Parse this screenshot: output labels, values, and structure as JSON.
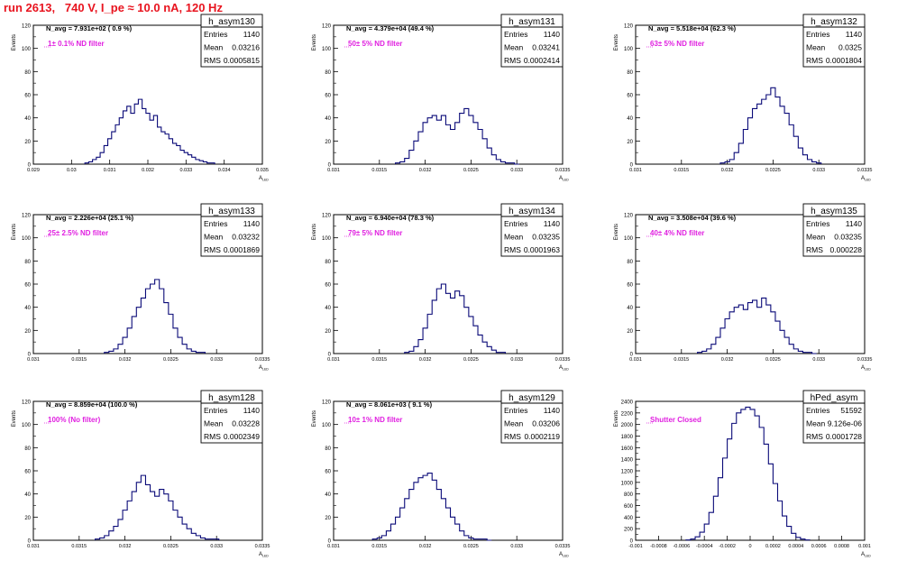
{
  "canvas_title": "run 2613,   740 V, I_pe ≈ 10.0 nA, 120 Hz",
  "colors": {
    "title": "#e8141f",
    "annotation": "#e020e0",
    "hist": "#0a0a78",
    "frame": "#000000"
  },
  "stat_labels": {
    "entries": "Entries",
    "mean": "Mean",
    "rms": "RMS"
  },
  "axis_labels": {
    "y": "Events",
    "x_main": "A",
    "x_sub": "LED"
  },
  "chart_data": [
    {
      "type": "bar",
      "histogram": "h_asym130",
      "navg_text": "N_avg = 7.931e+02 ( 0.9 %)",
      "filter_text": "1± 0.1% ND filter",
      "entries": "1140",
      "mean": "0.03216",
      "rms": "0.0005815",
      "xlim": [
        0.029,
        0.035
      ],
      "ylim": [
        0,
        120
      ],
      "xticks": [
        "0.029",
        "0.03",
        "0.031",
        "0.032",
        "0.033",
        "0.034",
        "0.035"
      ],
      "yticks": [
        "0",
        "20",
        "40",
        "60",
        "80",
        "100",
        "120"
      ],
      "x": [
        0.0304,
        0.0305,
        0.0306,
        0.0307,
        0.0308,
        0.0309,
        0.031,
        0.0311,
        0.0312,
        0.0313,
        0.0314,
        0.0315,
        0.0316,
        0.0317,
        0.0318,
        0.0319,
        0.032,
        0.0321,
        0.0322,
        0.0323,
        0.0324,
        0.0325,
        0.0326,
        0.0327,
        0.0328,
        0.0329,
        0.033,
        0.0331,
        0.0332,
        0.0333,
        0.0334,
        0.0335,
        0.0336,
        0.0337
      ],
      "values": [
        1,
        2,
        4,
        6,
        10,
        16,
        22,
        28,
        34,
        40,
        46,
        50,
        44,
        52,
        56,
        48,
        44,
        38,
        42,
        32,
        28,
        26,
        22,
        18,
        16,
        12,
        10,
        8,
        6,
        4,
        3,
        2,
        1,
        1
      ]
    },
    {
      "type": "bar",
      "histogram": "h_asym131",
      "navg_text": "N_avg = 4.379e+04 (49.4 %)",
      "filter_text": "50± 5% ND filter",
      "entries": "1140",
      "mean": "0.03241",
      "rms": "0.0002414",
      "xlim": [
        0.031,
        0.0335
      ],
      "ylim": [
        0,
        120
      ],
      "xticks": [
        "0.031",
        "0.0315",
        "0.032",
        "0.0325",
        "0.033",
        "0.0335"
      ],
      "yticks": [
        "0",
        "20",
        "40",
        "60",
        "80",
        "100",
        "120"
      ],
      "x": [
        0.0317,
        0.03175,
        0.0318,
        0.03185,
        0.0319,
        0.03195,
        0.032,
        0.03205,
        0.0321,
        0.03215,
        0.0322,
        0.03225,
        0.0323,
        0.03235,
        0.0324,
        0.03245,
        0.0325,
        0.03255,
        0.0326,
        0.03265,
        0.0327,
        0.03275,
        0.0328,
        0.03285,
        0.0329,
        0.03295,
        0.033
      ],
      "values": [
        1,
        2,
        5,
        12,
        20,
        28,
        36,
        40,
        42,
        38,
        42,
        34,
        30,
        36,
        44,
        48,
        42,
        36,
        30,
        22,
        14,
        8,
        4,
        2,
        1,
        1,
        0
      ]
    },
    {
      "type": "bar",
      "histogram": "h_asym132",
      "navg_text": "N_avg = 5.518e+04 (62.3 %)",
      "filter_text": "63± 5% ND filter",
      "entries": "1140",
      "mean": "0.0325",
      "rms": "0.0001804",
      "xlim": [
        0.031,
        0.0335
      ],
      "ylim": [
        0,
        120
      ],
      "xticks": [
        "0.031",
        "0.0315",
        "0.032",
        "0.0325",
        "0.033",
        "0.0335"
      ],
      "yticks": [
        "0",
        "20",
        "40",
        "60",
        "80",
        "100",
        "120"
      ],
      "x": [
        0.03195,
        0.032,
        0.03205,
        0.0321,
        0.03215,
        0.0322,
        0.03225,
        0.0323,
        0.03235,
        0.0324,
        0.03245,
        0.0325,
        0.03255,
        0.0326,
        0.03265,
        0.0327,
        0.03275,
        0.0328,
        0.03285,
        0.0329,
        0.03295,
        0.033
      ],
      "values": [
        1,
        2,
        4,
        10,
        18,
        30,
        40,
        48,
        52,
        56,
        60,
        66,
        58,
        50,
        44,
        34,
        24,
        14,
        8,
        4,
        2,
        1
      ]
    },
    {
      "type": "bar",
      "histogram": "h_asym133",
      "navg_text": "N_avg = 2.226e+04 (25.1 %)",
      "filter_text": "25± 2.5% ND filter",
      "entries": "1140",
      "mean": "0.03232",
      "rms": "0.0001869",
      "xlim": [
        0.031,
        0.0335
      ],
      "ylim": [
        0,
        120
      ],
      "xticks": [
        "0.031",
        "0.0315",
        "0.032",
        "0.0325",
        "0.033",
        "0.0335"
      ],
      "yticks": [
        "0",
        "20",
        "40",
        "60",
        "80",
        "100",
        "120"
      ],
      "x": [
        0.0318,
        0.03185,
        0.0319,
        0.03195,
        0.032,
        0.03205,
        0.0321,
        0.03215,
        0.0322,
        0.03225,
        0.0323,
        0.03235,
        0.0324,
        0.03245,
        0.0325,
        0.03255,
        0.0326,
        0.03265,
        0.0327,
        0.03275,
        0.0328,
        0.03285
      ],
      "values": [
        1,
        2,
        4,
        8,
        14,
        22,
        32,
        40,
        48,
        56,
        60,
        64,
        56,
        44,
        34,
        22,
        14,
        8,
        4,
        2,
        1,
        1
      ]
    },
    {
      "type": "bar",
      "histogram": "h_asym134",
      "navg_text": "N_avg = 6.940e+04 (78.3 %)",
      "filter_text": "79± 5% ND filter",
      "entries": "1140",
      "mean": "0.03235",
      "rms": "0.0001963",
      "xlim": [
        0.031,
        0.0335
      ],
      "ylim": [
        0,
        120
      ],
      "xticks": [
        "0.031",
        "0.0315",
        "0.032",
        "0.0325",
        "0.033",
        "0.0335"
      ],
      "yticks": [
        "0",
        "20",
        "40",
        "60",
        "80",
        "100",
        "120"
      ],
      "x": [
        0.0318,
        0.03185,
        0.0319,
        0.03195,
        0.032,
        0.03205,
        0.0321,
        0.03215,
        0.0322,
        0.03225,
        0.0323,
        0.03235,
        0.0324,
        0.03245,
        0.0325,
        0.03255,
        0.0326,
        0.03265,
        0.0327,
        0.03275,
        0.0328,
        0.03285
      ],
      "values": [
        1,
        2,
        6,
        12,
        22,
        34,
        46,
        56,
        60,
        52,
        48,
        54,
        50,
        40,
        32,
        24,
        16,
        10,
        6,
        3,
        1,
        1
      ]
    },
    {
      "type": "bar",
      "histogram": "h_asym135",
      "navg_text": "N_avg = 3.508e+04 (39.6 %)",
      "filter_text": "40± 4% ND filter",
      "entries": "1140",
      "mean": "0.03235",
      "rms": "0.000228",
      "xlim": [
        0.031,
        0.0335
      ],
      "ylim": [
        0,
        120
      ],
      "xticks": [
        "0.031",
        "0.0315",
        "0.032",
        "0.0325",
        "0.033",
        "0.0335"
      ],
      "yticks": [
        "0",
        "20",
        "40",
        "60",
        "80",
        "100",
        "120"
      ],
      "x": [
        0.0317,
        0.03175,
        0.0318,
        0.03185,
        0.0319,
        0.03195,
        0.032,
        0.03205,
        0.0321,
        0.03215,
        0.0322,
        0.03225,
        0.0323,
        0.03235,
        0.0324,
        0.03245,
        0.0325,
        0.03255,
        0.0326,
        0.03265,
        0.0327,
        0.03275,
        0.0328,
        0.03285,
        0.0329,
        0.03295
      ],
      "values": [
        1,
        2,
        4,
        8,
        14,
        22,
        30,
        36,
        40,
        42,
        38,
        44,
        46,
        40,
        48,
        42,
        36,
        28,
        20,
        14,
        8,
        4,
        2,
        1,
        1,
        0
      ]
    },
    {
      "type": "bar",
      "histogram": "h_asym128",
      "navg_text": "N_avg = 8.859e+04 (100.0 %)",
      "filter_text": "100% (No filter)",
      "entries": "1140",
      "mean": "0.03228",
      "rms": "0.0002349",
      "xlim": [
        0.031,
        0.0335
      ],
      "ylim": [
        0,
        120
      ],
      "xticks": [
        "0.031",
        "0.0315",
        "0.032",
        "0.0325",
        "0.033",
        "0.0335"
      ],
      "yticks": [
        "0",
        "20",
        "40",
        "60",
        "80",
        "100",
        "120"
      ],
      "x": [
        0.0317,
        0.03175,
        0.0318,
        0.03185,
        0.0319,
        0.03195,
        0.032,
        0.03205,
        0.0321,
        0.03215,
        0.0322,
        0.03225,
        0.0323,
        0.03235,
        0.0324,
        0.03245,
        0.0325,
        0.03255,
        0.0326,
        0.03265,
        0.0327,
        0.03275,
        0.0328,
        0.03285,
        0.0329,
        0.03295,
        0.033
      ],
      "values": [
        1,
        2,
        4,
        8,
        12,
        18,
        26,
        34,
        42,
        50,
        56,
        48,
        42,
        38,
        44,
        40,
        34,
        26,
        20,
        14,
        10,
        6,
        4,
        2,
        1,
        1,
        1
      ]
    },
    {
      "type": "bar",
      "histogram": "h_asym129",
      "navg_text": "N_avg = 8.061e+03 ( 9.1 %)",
      "filter_text": "10± 1% ND filter",
      "entries": "1140",
      "mean": "0.03206",
      "rms": "0.0002119",
      "xlim": [
        0.031,
        0.0335
      ],
      "ylim": [
        0,
        120
      ],
      "xticks": [
        "0.031",
        "0.0315",
        "0.032",
        "0.0325",
        "0.033",
        "0.0335"
      ],
      "yticks": [
        "0",
        "20",
        "40",
        "60",
        "80",
        "100",
        "120"
      ],
      "x": [
        0.03145,
        0.0315,
        0.03155,
        0.0316,
        0.03165,
        0.0317,
        0.03175,
        0.0318,
        0.03185,
        0.0319,
        0.03195,
        0.032,
        0.03205,
        0.0321,
        0.03215,
        0.0322,
        0.03225,
        0.0323,
        0.03235,
        0.0324,
        0.03245,
        0.0325,
        0.03255,
        0.0326,
        0.03265,
        0.0327
      ],
      "values": [
        1,
        2,
        4,
        8,
        14,
        20,
        28,
        36,
        44,
        50,
        54,
        56,
        58,
        52,
        44,
        36,
        28,
        20,
        14,
        8,
        4,
        2,
        1,
        1,
        1,
        0
      ]
    },
    {
      "type": "bar",
      "histogram": "hPed_asym",
      "navg_text": "",
      "filter_text": "Shutter Closed",
      "entries": "51592",
      "mean": "9.126e-06",
      "rms": "0.0001728",
      "xlim": [
        -0.001,
        0.001
      ],
      "ylim": [
        0,
        2400
      ],
      "xticks": [
        "-0.001",
        "-0.0008",
        "-0.0006",
        "-0.0004",
        "-0.0002",
        "0",
        "0.0002",
        "0.0004",
        "0.0006",
        "0.0008",
        "0.001"
      ],
      "yticks": [
        "0",
        "200",
        "400",
        "600",
        "800",
        "1000",
        "1200",
        "1400",
        "1600",
        "1800",
        "2000",
        "2200",
        "2400"
      ],
      "x": [
        -0.00054,
        -0.0005,
        -0.00046,
        -0.00042,
        -0.00038,
        -0.00034,
        -0.0003,
        -0.00026,
        -0.00022,
        -0.00018,
        -0.00014,
        -0.0001,
        -6e-05,
        -2e-05,
        2e-05,
        6e-05,
        0.0001,
        0.00014,
        0.00018,
        0.00022,
        0.00026,
        0.0003,
        0.00034,
        0.00038,
        0.00042,
        0.00046,
        0.0005
      ],
      "values": [
        5,
        20,
        60,
        140,
        280,
        480,
        760,
        1080,
        1420,
        1750,
        2020,
        2200,
        2260,
        2300,
        2260,
        2150,
        1950,
        1660,
        1320,
        980,
        680,
        420,
        240,
        120,
        50,
        20,
        5
      ]
    }
  ]
}
